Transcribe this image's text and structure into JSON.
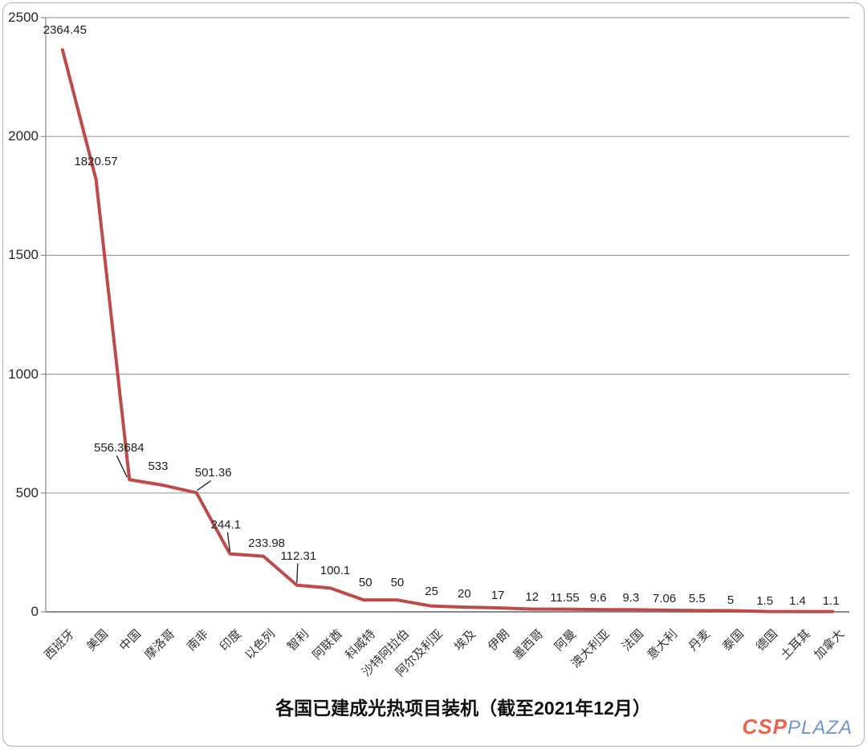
{
  "chart_data": {
    "type": "line",
    "title": "各国已建成光热项目装机（截至2021年12月）",
    "categories": [
      "西班牙",
      "美国",
      "中国",
      "摩洛哥",
      "南非",
      "印度",
      "以色列",
      "智利",
      "阿联酋",
      "科威特",
      "沙特阿拉伯",
      "阿尔及利亚",
      "埃及",
      "伊朗",
      "墨西哥",
      "阿曼",
      "澳大利亚",
      "法国",
      "意大利",
      "丹麦",
      "泰国",
      "德国",
      "土耳其",
      "加拿大"
    ],
    "values": [
      2364.45,
      1820.57,
      556.3684,
      533,
      501.36,
      244.1,
      233.98,
      112.31,
      100.1,
      50,
      50,
      25,
      20,
      17,
      12,
      11.55,
      9.6,
      9.3,
      7.06,
      5.5,
      5,
      1.5,
      1.4,
      1.1
    ],
    "value_labels": [
      "2364.45",
      "1820.57",
      "556.3684",
      "533",
      "501.36",
      "244.1",
      "233.98",
      "112.31",
      "100.1",
      "50",
      "50",
      "25",
      "20",
      "17",
      "12",
      "11.55",
      "9.6",
      "9.3",
      "7.06",
      "5.5",
      "5",
      "1.5",
      "1.4",
      "1.1"
    ],
    "y_ticks": [
      "0",
      "500",
      "1000",
      "1500",
      "2000",
      "2500"
    ],
    "ylim": [
      0,
      2500
    ],
    "grid": true,
    "legend": "none",
    "line_color": "#BE4B48",
    "gridline_color": "#A0A0A0",
    "axis_color": "#8C8C8C"
  },
  "watermark": {
    "csp": "CSP",
    "plaza": "PLAZA",
    "csp_color": "#E8654F",
    "plaza_color": "#7195C8"
  }
}
